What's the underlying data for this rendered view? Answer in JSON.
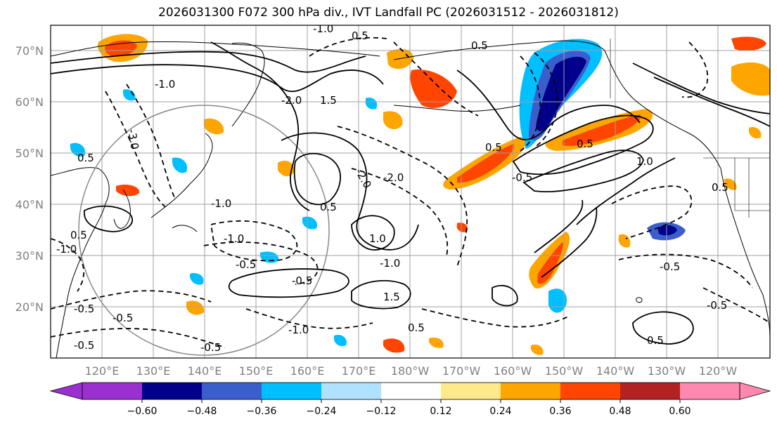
{
  "title": "2026031300 F072 300 hPa div., IVT Landfall PC (2026031512 - 2026031812)",
  "lat_labels": [
    "70°N",
    "60°N",
    "50°N",
    "40°N",
    "30°N",
    "20°N"
  ],
  "lon_labels": [
    "120°E",
    "130°E",
    "140°E",
    "150°E",
    "160°E",
    "170°E",
    "180°W",
    "170°W",
    "160°W",
    "150°W",
    "140°W",
    "130°W",
    "120°W"
  ],
  "colorbar": {
    "ticks": [
      "−0.60",
      "−0.48",
      "−0.36",
      "−0.24",
      "−0.12",
      "0.12",
      "0.24",
      "0.36",
      "0.48",
      "0.60"
    ],
    "colors": [
      "#9b30d0",
      "#00008b",
      "#3a5fcd",
      "#00bfff",
      "#b0e2ff",
      "#ffffff",
      "#ffe98a",
      "#ffa500",
      "#ff4500",
      "#b22222",
      "#ff88b0"
    ]
  },
  "contour_labels": [
    "-1.0",
    "0.5",
    "-3.0",
    "-1.0",
    "-2.0",
    "1.5",
    "-2.0",
    "-1.0",
    "0.5",
    "-1.0",
    "-2.0",
    "-0.5",
    "1.0",
    "-1.0",
    "0.5",
    "0.5",
    "-0.5",
    "-1.0",
    "-0.5",
    "1.5",
    "0.5",
    "-1.0",
    "-0.5",
    "0.5",
    "-0.5",
    "-0.5",
    "0.5",
    "-0.5",
    "1.0",
    "-0.5",
    "0.5",
    "0.5",
    "-0.5",
    "0.5"
  ]
}
